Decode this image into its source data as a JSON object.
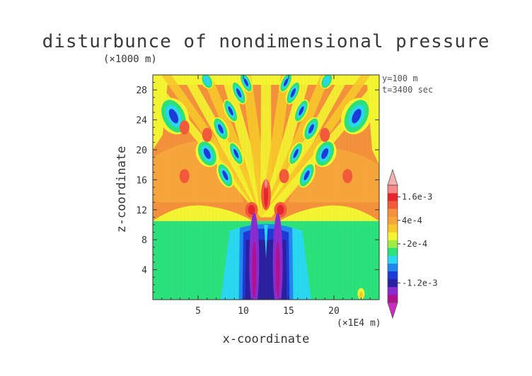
{
  "chart_data": {
    "type": "heatmap",
    "title": "disturbunce of nondimensional pressure",
    "xlabel": "x-coordinate",
    "ylabel": "z-coordinate",
    "x_scale_note": "(×1E4 m)",
    "y_scale_note": "(×1000 m)",
    "annotations": [
      "y=100 m",
      "t=3400 sec"
    ],
    "xlim": [
      0,
      25
    ],
    "ylim": [
      0,
      30
    ],
    "x_ticks": [
      5,
      10,
      15,
      20
    ],
    "y_ticks": [
      4,
      8,
      12,
      16,
      20,
      24,
      28
    ],
    "x_tick_labels": [
      "5",
      "10",
      "15",
      "20"
    ],
    "y_tick_labels": [
      "4",
      "8",
      "12",
      "16",
      "20",
      "24",
      "28"
    ],
    "colorbar": {
      "levels": [
        {
          "color": "#b2108f"
        },
        {
          "color": "#8a2bd0"
        },
        {
          "color": "#2a1f9e"
        },
        {
          "color": "#1c3ad8"
        },
        {
          "color": "#1f86ee"
        },
        {
          "color": "#28d8f0"
        },
        {
          "color": "#2ae27a"
        },
        {
          "color": "#a0ec42"
        },
        {
          "color": "#f4f530"
        },
        {
          "color": "#f8c82a"
        },
        {
          "color": "#f7a53a"
        },
        {
          "color": "#f4913a"
        },
        {
          "color": "#f4593a"
        },
        {
          "color": "#e8242c"
        },
        {
          "color": "#f58a86"
        }
      ],
      "tick_labels": [
        {
          "label": "1.6e-3",
          "level_index": 13
        },
        {
          "label": "4e-4",
          "level_index": 10
        },
        {
          "label": "-2e-4",
          "level_index": 7
        },
        {
          "label": "-1.2e-3",
          "level_index": 2
        }
      ],
      "top_arrow_color": "#f5b0b0",
      "bottom_arrow_color": "#d028c0"
    },
    "regions": [
      {
        "desc": "background upper",
        "color": "#f4913a"
      },
      {
        "desc": "lower layer",
        "color": "#2ae27a"
      }
    ]
  }
}
